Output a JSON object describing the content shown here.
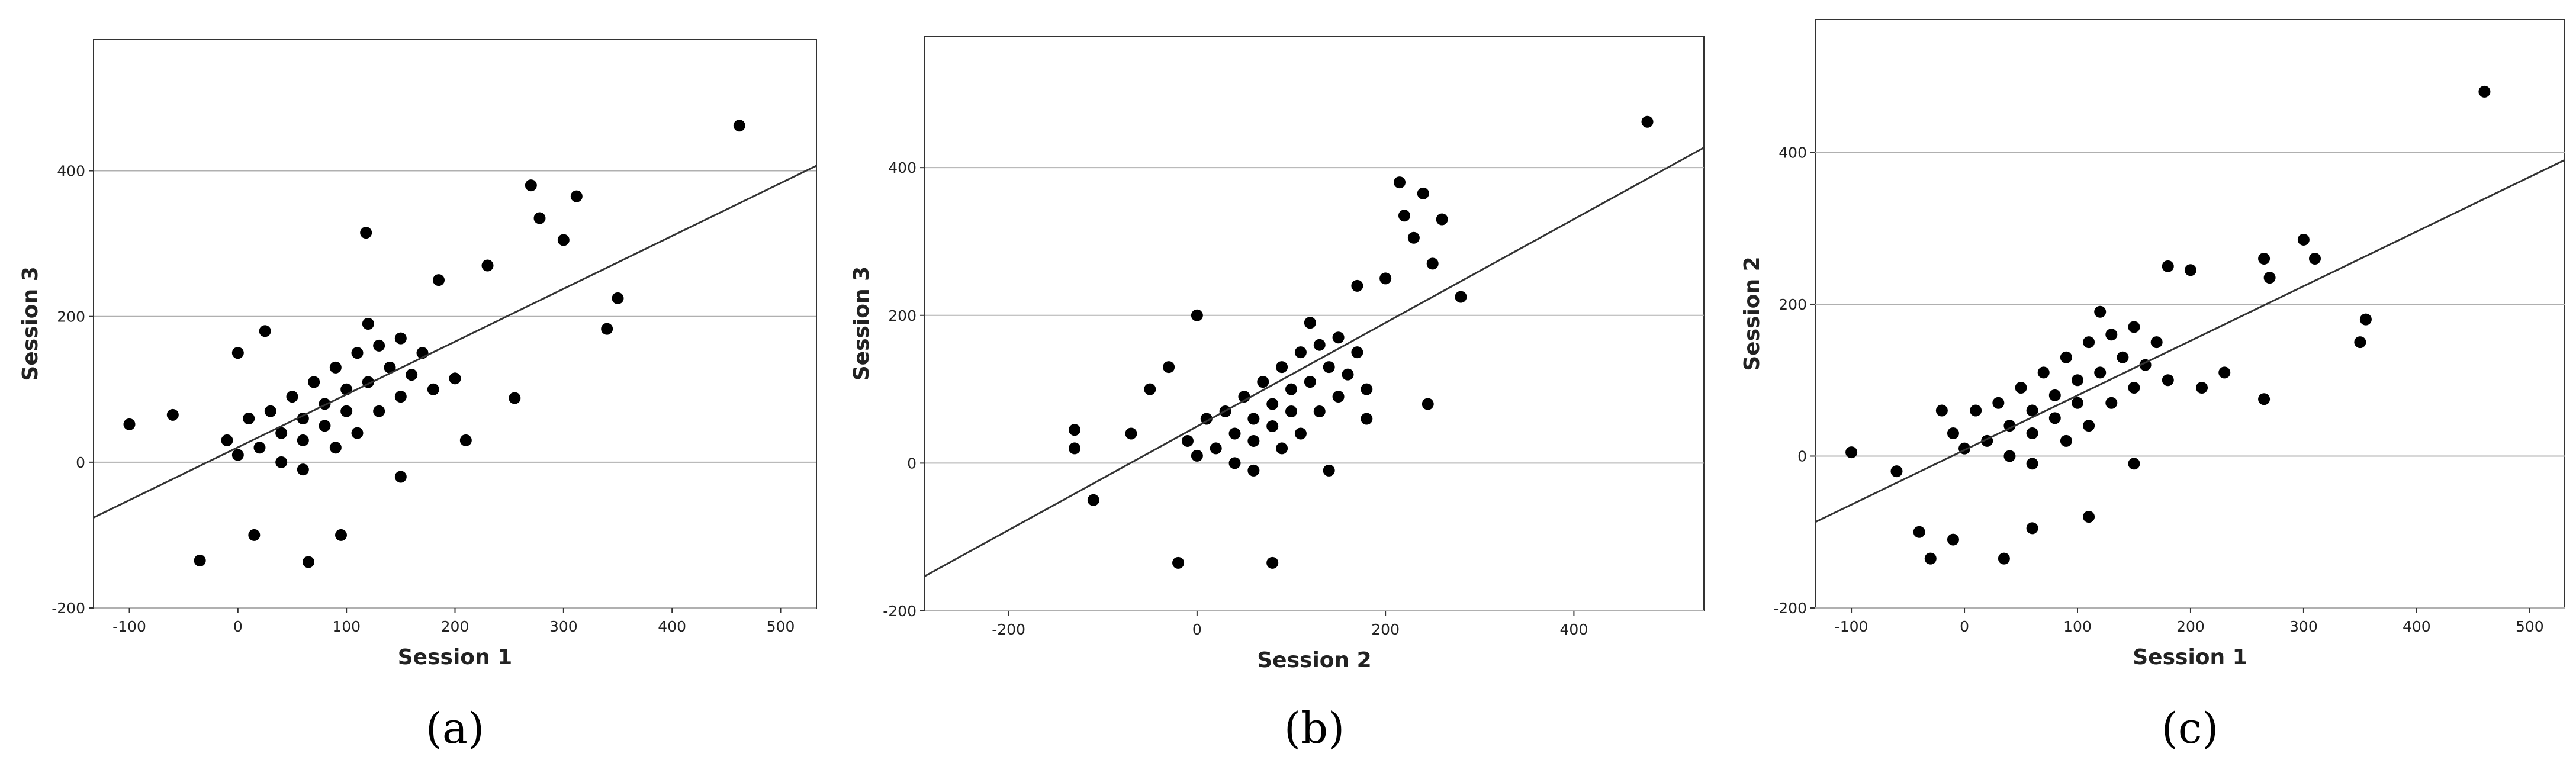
{
  "chart_data": [
    {
      "type": "scatter",
      "caption": "(a)",
      "x_label": "Session 1",
      "y_label": "Session 3",
      "color": "#000000",
      "grid": true,
      "xlim": [
        -133,
        533
      ],
      "ylim": [
        -200,
        580
      ],
      "xticks": [
        -100,
        0,
        100,
        200,
        300,
        400,
        500
      ],
      "yticks": [
        -200,
        0,
        200,
        400
      ],
      "x": [
        20,
        40,
        60,
        80,
        100,
        120,
        140,
        60,
        80,
        100,
        30,
        50,
        70,
        90,
        110,
        130,
        150,
        160,
        170,
        0,
        -10,
        10,
        40,
        60,
        90,
        110,
        130,
        150,
        120,
        180,
        462,
        270,
        312,
        278,
        300,
        118,
        350,
        340,
        255,
        -100,
        -35,
        65,
        95,
        150,
        15,
        -60,
        0,
        25,
        185,
        230,
        210,
        200
      ],
      "y": [
        20,
        40,
        60,
        80,
        100,
        110,
        130,
        30,
        50,
        70,
        70,
        90,
        110,
        130,
        150,
        160,
        170,
        120,
        150,
        10,
        30,
        60,
        0,
        -10,
        20,
        40,
        70,
        90,
        190,
        100,
        462,
        380,
        365,
        335,
        305,
        315,
        225,
        183,
        88,
        52,
        -135,
        -137,
        -100,
        -20,
        -100,
        65,
        150,
        180,
        250,
        270,
        30,
        115
      ],
      "fit_line": {
        "x": [
          -133,
          533
        ],
        "y": [
          -76,
          407
        ]
      }
    },
    {
      "type": "scatter",
      "caption": "(b)",
      "x_label": "Session 2",
      "y_label": "Session 3",
      "color": "#000000",
      "grid": true,
      "xlim": [
        -289,
        538
      ],
      "ylim": [
        -200,
        578
      ],
      "xticks": [
        -200,
        0,
        200,
        400
      ],
      "yticks": [
        -200,
        0,
        200,
        400
      ],
      "x": [
        20,
        40,
        60,
        80,
        100,
        120,
        140,
        60,
        80,
        100,
        30,
        50,
        70,
        90,
        110,
        130,
        150,
        160,
        170,
        0,
        -10,
        10,
        40,
        60,
        90,
        110,
        130,
        150,
        120,
        180,
        478,
        215,
        240,
        220,
        230,
        250,
        280,
        245,
        -130,
        -130,
        -110,
        -20,
        80,
        -70,
        0,
        -30,
        170,
        140,
        180,
        -50,
        260,
        200
      ],
      "y": [
        20,
        40,
        60,
        80,
        100,
        110,
        130,
        30,
        50,
        70,
        70,
        90,
        110,
        130,
        150,
        160,
        170,
        120,
        150,
        10,
        30,
        60,
        0,
        -10,
        20,
        40,
        70,
        90,
        190,
        100,
        462,
        380,
        365,
        335,
        305,
        270,
        225,
        80,
        45,
        20,
        -50,
        -135,
        -135,
        40,
        200,
        130,
        240,
        -10,
        60,
        100,
        330,
        250
      ],
      "fit_line": {
        "x": [
          -289,
          538
        ],
        "y": [
          -153,
          427
        ]
      }
    },
    {
      "type": "scatter",
      "caption": "(c)",
      "x_label": "Session 1",
      "y_label": "Session 2",
      "color": "#000000",
      "grid": true,
      "xlim": [
        -132,
        531
      ],
      "ylim": [
        -200,
        575
      ],
      "xticks": [
        -100,
        0,
        100,
        200,
        300,
        400,
        500
      ],
      "yticks": [
        -200,
        0,
        200,
        400
      ],
      "x": [
        20,
        40,
        60,
        80,
        100,
        120,
        140,
        60,
        80,
        100,
        30,
        50,
        70,
        90,
        110,
        130,
        150,
        160,
        170,
        0,
        -10,
        10,
        40,
        60,
        90,
        110,
        130,
        150,
        120,
        180,
        460,
        310,
        300,
        265,
        270,
        350,
        355,
        265,
        -100,
        -30,
        35,
        -40,
        210,
        180,
        230,
        -60,
        -10,
        150,
        110,
        60,
        200,
        -20
      ],
      "y": [
        20,
        40,
        60,
        80,
        100,
        110,
        130,
        30,
        50,
        70,
        70,
        90,
        110,
        130,
        150,
        160,
        170,
        120,
        150,
        10,
        30,
        60,
        0,
        -10,
        20,
        40,
        70,
        90,
        190,
        100,
        480,
        260,
        285,
        260,
        235,
        150,
        180,
        75,
        5,
        -135,
        -135,
        -100,
        90,
        250,
        110,
        -20,
        -110,
        -10,
        -80,
        -95,
        245,
        60
      ],
      "fit_line": {
        "x": [
          -132,
          531
        ],
        "y": [
          -87,
          390
        ]
      }
    }
  ]
}
